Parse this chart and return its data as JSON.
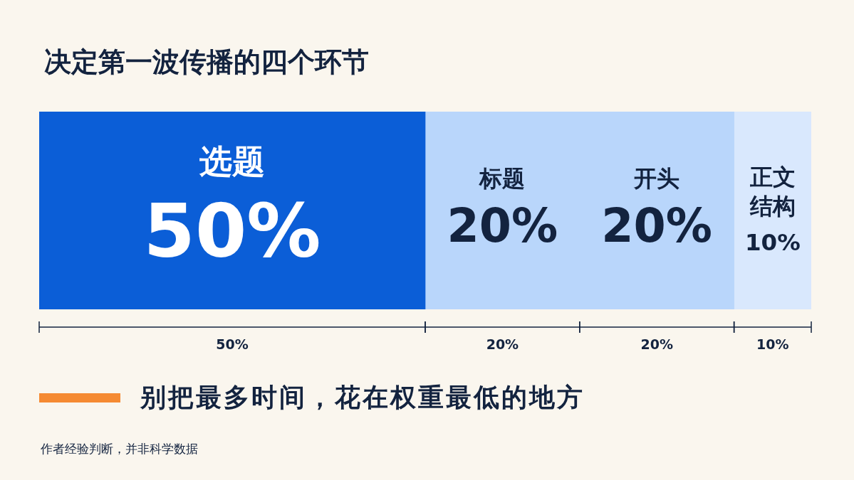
{
  "chart_data": {
    "type": "bar",
    "title": "决定第一波传播的四个环节",
    "orientation": "horizontal",
    "stacked": true,
    "categories": [
      null
    ],
    "xlim": [
      0,
      100
    ],
    "series": [
      {
        "name": "选题",
        "color": "#0b5ed7",
        "values": [
          50
        ],
        "value_labels": [
          "50%"
        ]
      },
      {
        "name": "标题",
        "color": "#b9d6fb",
        "values": [
          20
        ],
        "value_labels": [
          "20%"
        ]
      },
      {
        "name": "开头",
        "color": "#b9d6fb",
        "values": [
          20
        ],
        "value_labels": [
          "20%"
        ]
      },
      {
        "name": "正文结构",
        "color": "#d9e8fd",
        "values": [
          10
        ],
        "value_labels": [
          "10%"
        ]
      }
    ],
    "annotations": [
      "别把最多时间，花在权重最低的地方",
      "作者经验判断，并非科学数据"
    ]
  }
}
